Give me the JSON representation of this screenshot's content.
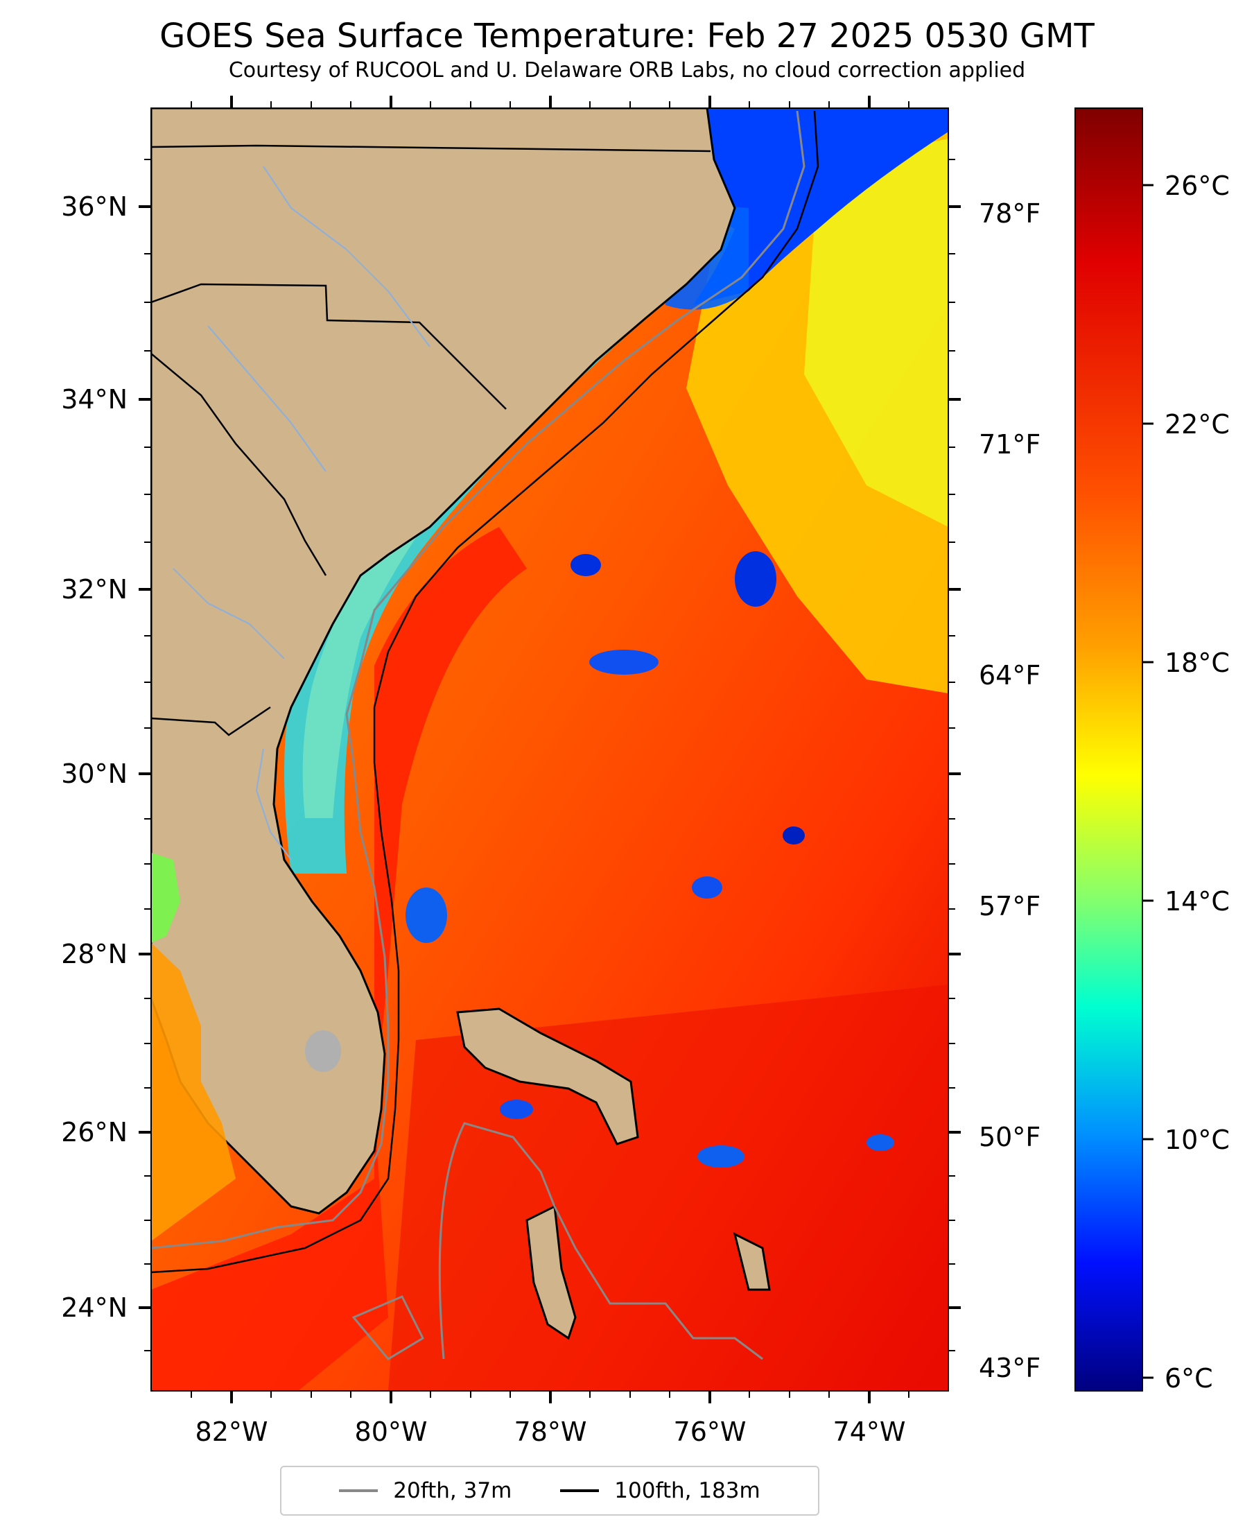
{
  "title": "GOES Sea Surface Temperature: Feb 27 2025 0530 GMT",
  "subtitle": "Courtesy of RUCOOL and U. Delaware ORB Labs, no cloud correction applied",
  "map": {
    "lon_ticks": [
      "82°W",
      "80°W",
      "78°W",
      "76°W",
      "74°W"
    ],
    "lat_ticks": [
      "36°N",
      "34°N",
      "32°N",
      "30°N",
      "28°N",
      "26°N",
      "24°N"
    ],
    "fahrenheit_ticks": [
      "78°F",
      "71°F",
      "64°F",
      "57°F",
      "50°F",
      "43°F"
    ],
    "land_color": "#cfb48c",
    "lon_range": [
      -83,
      -73
    ],
    "lat_range": [
      23.1,
      37.0
    ]
  },
  "colorbar": {
    "ticks": [
      "26°C",
      "22°C",
      "18°C",
      "14°C",
      "10°C",
      "6°C"
    ],
    "colors": [
      "#7f0000",
      "#ff1a00",
      "#ff9900",
      "#ffff00",
      "#00ffff",
      "#0055ff",
      "#00007f"
    ]
  },
  "legend": {
    "items": [
      {
        "label": "20fth, 37m",
        "color": "#888888"
      },
      {
        "label": "100fth, 183m",
        "color": "#000000"
      }
    ]
  }
}
